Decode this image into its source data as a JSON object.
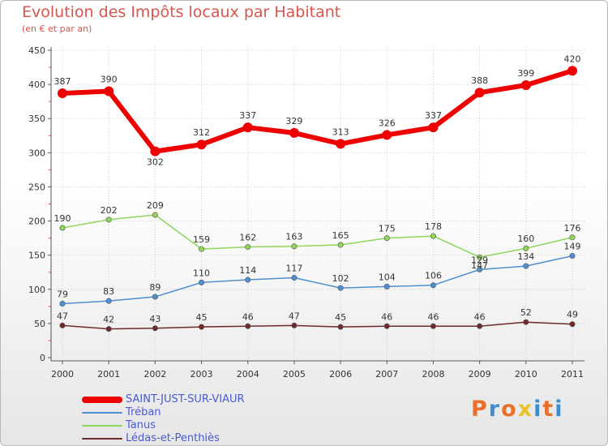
{
  "header": {
    "title": "Evolution des Impôts locaux par Habitant",
    "subtitle": "(en € et par an)"
  },
  "logo": {
    "text": "Proxiti",
    "colors": [
      "#e8702a",
      "#3b8ed0",
      "#e8702a",
      "#e8c22a",
      "#3b8ed0",
      "#e8702a",
      "#3b8ed0"
    ]
  },
  "chart_data": {
    "type": "line",
    "x": [
      "2000",
      "2001",
      "2002",
      "2003",
      "2004",
      "2005",
      "2006",
      "2007",
      "2008",
      "2009",
      "2010",
      "2011"
    ],
    "ylim": [
      0,
      450
    ],
    "yticks": [
      "0",
      "50",
      "100",
      "150",
      "200",
      "250",
      "300",
      "350",
      "400",
      "450"
    ],
    "grid": true,
    "legend": "bottom-left",
    "series": [
      {
        "name": "SAINT-JUST-SUR-VIAUR",
        "color": "#ee0000",
        "values": [
          387,
          390,
          302,
          312,
          337,
          329,
          313,
          326,
          337,
          388,
          399,
          420
        ]
      },
      {
        "name": "Tréban",
        "color": "#4f8fcf",
        "values": [
          79,
          83,
          89,
          110,
          114,
          117,
          102,
          104,
          106,
          129,
          134,
          149
        ]
      },
      {
        "name": "Tanus",
        "color": "#8fd65a",
        "values": [
          190,
          202,
          209,
          159,
          162,
          163,
          165,
          175,
          178,
          147,
          160,
          176
        ]
      },
      {
        "name": "Lédas-et-Penthiès",
        "color": "#6e2a2a",
        "values": [
          47,
          42,
          43,
          45,
          46,
          47,
          45,
          46,
          46,
          46,
          52,
          49
        ]
      }
    ]
  }
}
